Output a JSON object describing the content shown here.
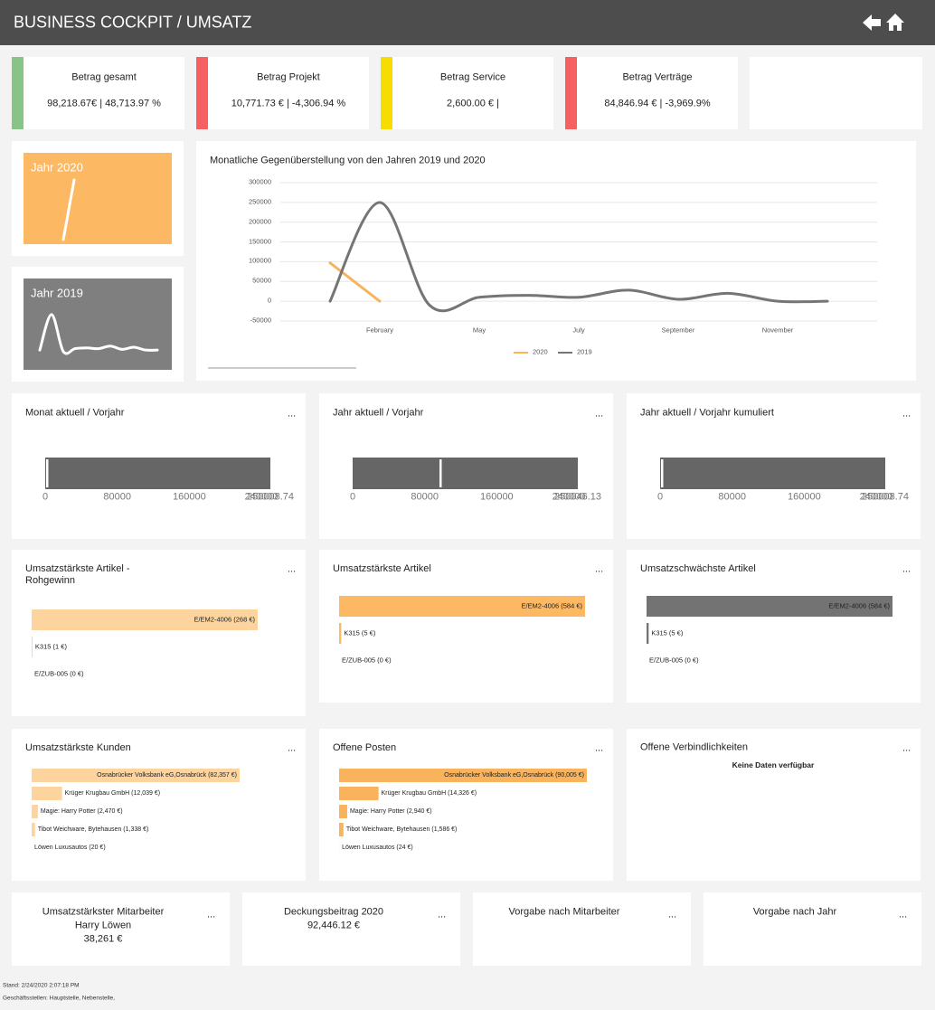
{
  "header": {
    "title": "BUSINESS COCKPIT / UMSATZ"
  },
  "menu_label": "...",
  "kpis": [
    {
      "label": "Betrag gesamt",
      "value": "98,218.67€ | 48,713.97 %",
      "color": "#88c488"
    },
    {
      "label": "Betrag Projekt",
      "value": "10,771.73 € | -4,306.94 %",
      "color": "#f56060"
    },
    {
      "label": "Betrag Service",
      "value": "2,600.00 € |",
      "color": "#f7dc00"
    },
    {
      "label": "Betrag Verträge",
      "value": "84,846.94 € | -3,969.9%",
      "color": "#f56060"
    }
  ],
  "year_tiles": [
    {
      "label": "Jahr  2020",
      "color": "#fdb863"
    },
    {
      "label": "Jahr  2019",
      "color": "#7f7f7f"
    }
  ],
  "line_chart": {
    "type": "line",
    "title": "Monatliche Gegenüberstellung von den Jahren 2019 und 2020",
    "categories": [
      null,
      "February",
      null,
      "May",
      null,
      "July",
      null,
      "September",
      null,
      "November",
      null
    ],
    "series": [
      {
        "name": "2020",
        "color": "#f9b35c",
        "values": [
          97000,
          0,
          null,
          null,
          null,
          null,
          null,
          null,
          null,
          null,
          null
        ]
      },
      {
        "name": "2019",
        "color": "#757575",
        "values": [
          0,
          250000,
          -10000,
          10000,
          15000,
          10000,
          28000,
          5000,
          20000,
          0,
          0
        ]
      }
    ],
    "ylim": [
      -50000,
      300000
    ],
    "yticks": [
      -50000,
      0,
      50000,
      100000,
      150000,
      200000,
      250000,
      300000
    ],
    "grid": true,
    "legend": "bottom"
  },
  "gauges": [
    {
      "title": "Monat aktuell / Vorjahr",
      "value": 2000,
      "max": 250008.74,
      "ticks": [
        0,
        80000,
        160000,
        240000
      ],
      "color": "#666666"
    },
    {
      "title": "Jahr aktuell / Vorjahr",
      "value": 97400,
      "max": 250046.13,
      "ticks": [
        0,
        80000,
        160000,
        240000
      ],
      "color": "#666666"
    },
    {
      "title": "Jahr aktuell / Vorjahr kumuliert",
      "value": 2000,
      "max": 250008.74,
      "ticks": [
        0,
        80000,
        160000,
        240000
      ],
      "color": "#666666"
    }
  ],
  "bar_lists": [
    {
      "title": "Umsatzstärkste Artikel - Rohgewinn",
      "color": "#fdd49e",
      "items": [
        {
          "label": "E/EM2-4006 (268 €)",
          "value": 268
        },
        {
          "label": "K315 (1 €)",
          "value": 1
        },
        {
          "label": "E/ZUB-005 (0 €)",
          "value": 0
        }
      ]
    },
    {
      "title": "Umsatzstärkste Artikel",
      "color": "#fdb863",
      "items": [
        {
          "label": "E/EM2-4006 (584 €)",
          "value": 584
        },
        {
          "label": "K315 (5 €)",
          "value": 5
        },
        {
          "label": "E/ZUB-005 (0 €)",
          "value": 0
        }
      ]
    },
    {
      "title": "Umsatzschwächste Artikel",
      "color": "#737373",
      "items": [
        {
          "label": "E/EM2-4006 (584 €)",
          "value": 584
        },
        {
          "label": "K315 (5 €)",
          "value": 5
        },
        {
          "label": "E/ZUB-005 (0 €)",
          "value": 0
        }
      ]
    },
    {
      "title": "Umsatzstärkste Kunden",
      "color": "#fdd49e",
      "items": [
        {
          "label": "Osnabrücker Volksbank eG,Osnabrück (82,357 €)",
          "value": 82357
        },
        {
          "label": "Krüger Krugbau GmbH (12,039 €)",
          "value": 12039
        },
        {
          "label": "Magie: Harry Potter (2,470 €)",
          "value": 2470
        },
        {
          "label": "Tibot Weichware, Bytehausen (1,338 €)",
          "value": 1338
        },
        {
          "label": "Löwen Luxusautos (20 €)",
          "value": 20
        }
      ]
    },
    {
      "title": "Offene Posten",
      "color": "#f9b35c",
      "items": [
        {
          "label": "Osnabrücker Volksbank eG,Osnabrück (90,005 €)",
          "value": 90005
        },
        {
          "label": "Krüger Krugbau GmbH (14,326 €)",
          "value": 14326
        },
        {
          "label": "Magie: Harry Potter (2,940 €)",
          "value": 2940
        },
        {
          "label": "Tibot Weichware, Bytehausen (1,586 €)",
          "value": 1586
        },
        {
          "label": "Löwen Luxusautos (24 €)",
          "value": 24
        }
      ]
    }
  ],
  "empty_panel": {
    "title": "Offene Verbindlichkeiten",
    "message": "Keine Daten verfügbar"
  },
  "bottom_cards": [
    {
      "title": "Umsatzstärkster Mitarbeiter",
      "lines": [
        "Harry Löwen",
        "38,261 €"
      ]
    },
    {
      "title": "Deckungsbeitrag 2020",
      "lines": [
        "92,446.12 €"
      ]
    },
    {
      "title": "Vorgabe nach Mitarbeiter"
    },
    {
      "title": "Vorgabe nach Jahr"
    }
  ],
  "footer": [
    "Stand: 2/24/2020 2:07:18 PM",
    "Geschäftsstellen: Hauptstelle, Nebenstelle,"
  ]
}
